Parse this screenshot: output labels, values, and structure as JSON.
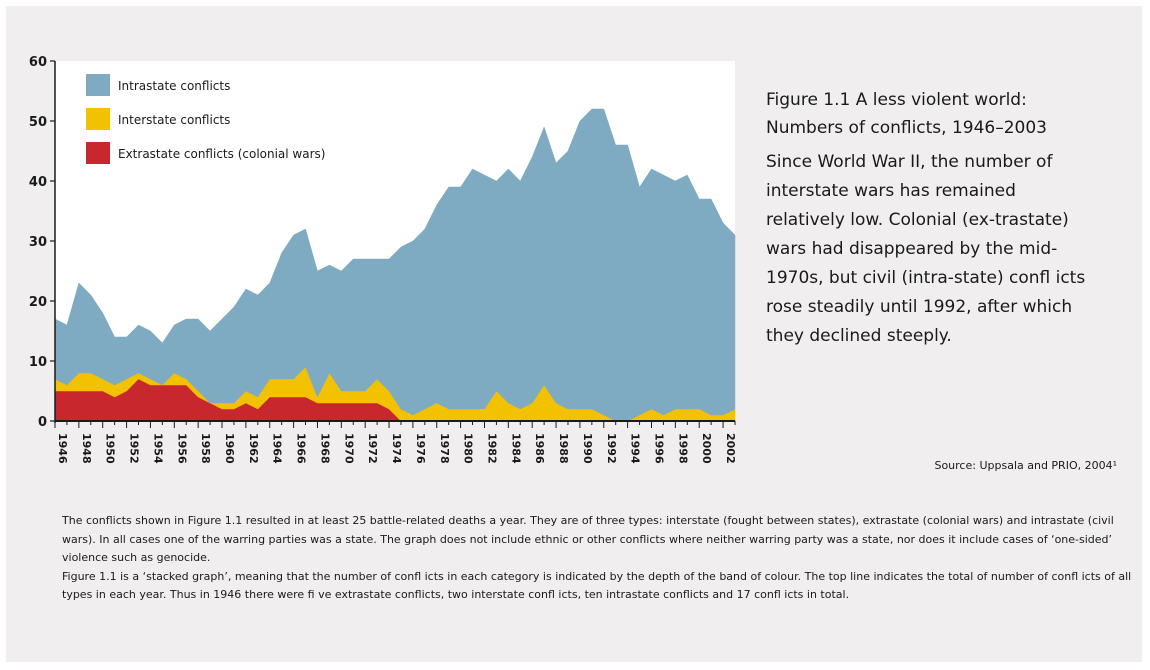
{
  "figure": {
    "title_line1": "Figure 1.1 A less violent world:",
    "title_line2": "Numbers of conflicts, 1946–2003",
    "description": "Since World War II, the number of interstate wars has remained relatively low. Colonial (ex-trastate) wars had disappeared by the mid-1970s, but civil (intra-state) confl  icts rose steadily until 1992, after which they declined steeply.",
    "source": "Source: Uppsala and PRIO, 2004¹"
  },
  "notes": {
    "paragraph1": "The conflicts shown in Figure 1.1 resulted in at least 25 battle-related deaths a year. They are of three types: interstate (fought between states), extrastate (colonial wars) and intrastate (civil wars). In all cases one of the warring parties was a state. The graph does not include ethnic or other conflicts where neither warring party was a state, nor does it include cases of ‘one-sided’ violence such as genocide.",
    "paragraph2": "Figure 1.1 is a ‘stacked graph’, meaning that the number of confl  icts in each category is indicated by the depth of the band of colour. The top line indicates the total of number of confl icts of all types in each year. Thus in 1946 there were fi  ve extrastate conflicts, two interstate confl icts, ten intrastate conflicts and 17 confl icts in total."
  },
  "colors": {
    "intrastate": "#7fabc2",
    "interstate": "#f2c200",
    "extrastate": "#c8272d",
    "background": "#f0eeee",
    "axis": "#1a1a1a"
  },
  "chart_data": {
    "type": "area",
    "stacked": true,
    "x": [
      1946,
      1947,
      1948,
      1949,
      1950,
      1951,
      1952,
      1953,
      1954,
      1955,
      1956,
      1957,
      1958,
      1959,
      1960,
      1961,
      1962,
      1963,
      1964,
      1965,
      1966,
      1967,
      1968,
      1969,
      1970,
      1971,
      1972,
      1973,
      1974,
      1975,
      1976,
      1977,
      1978,
      1979,
      1980,
      1981,
      1982,
      1983,
      1984,
      1985,
      1986,
      1987,
      1988,
      1989,
      1990,
      1991,
      1992,
      1993,
      1994,
      1995,
      1996,
      1997,
      1998,
      1999,
      2000,
      2001,
      2002,
      2003
    ],
    "x_tick_labels": [
      "1946",
      "1948",
      "1950",
      "1952",
      "1954",
      "1956",
      "1958",
      "1960",
      "1962",
      "1964",
      "1966",
      "1968",
      "1970",
      "1972",
      "1974",
      "1976",
      "1978",
      "1980",
      "1982",
      "1984",
      "1986",
      "1988",
      "1990",
      "1992",
      "1994",
      "1996",
      "1998",
      "2000",
      "2002"
    ],
    "ylim": [
      0,
      60
    ],
    "y_ticks": [
      "0",
      "10",
      "20",
      "30",
      "40",
      "50",
      "60"
    ],
    "legend_position": "top-left",
    "series": [
      {
        "name": "Extrastate conflicts (colonial wars)",
        "color_key": "extrastate",
        "values": [
          5,
          5,
          5,
          5,
          5,
          4,
          5,
          7,
          6,
          6,
          6,
          6,
          4,
          3,
          2,
          2,
          3,
          2,
          4,
          4,
          4,
          4,
          3,
          3,
          3,
          3,
          3,
          3,
          2,
          0,
          0,
          0,
          0,
          0,
          0,
          0,
          0,
          0,
          0,
          0,
          0,
          0,
          0,
          0,
          0,
          0,
          0,
          0,
          0,
          0,
          0,
          0,
          0,
          0,
          0,
          0,
          0,
          0
        ]
      },
      {
        "name": "Interstate conflicts",
        "color_key": "interstate",
        "values": [
          2,
          1,
          3,
          3,
          2,
          2,
          2,
          1,
          1,
          0,
          2,
          1,
          1,
          0,
          1,
          1,
          2,
          2,
          3,
          3,
          3,
          5,
          1,
          5,
          2,
          2,
          2,
          4,
          3,
          2,
          1,
          2,
          3,
          2,
          2,
          2,
          2,
          5,
          3,
          2,
          3,
          6,
          3,
          2,
          2,
          2,
          1,
          0,
          0,
          1,
          2,
          1,
          2,
          2,
          2,
          1,
          1,
          2
        ]
      },
      {
        "name": "Intrastate conflicts",
        "color_key": "intrastate",
        "values": [
          10,
          10,
          15,
          13,
          11,
          8,
          7,
          8,
          8,
          7,
          8,
          10,
          12,
          12,
          14,
          16,
          17,
          17,
          16,
          21,
          24,
          23,
          21,
          18,
          20,
          22,
          22,
          20,
          22,
          27,
          29,
          30,
          33,
          37,
          37,
          40,
          39,
          35,
          39,
          38,
          41,
          43,
          40,
          43,
          48,
          50,
          51,
          46,
          46,
          38,
          40,
          40,
          38,
          39,
          35,
          36,
          32,
          29
        ]
      }
    ]
  }
}
